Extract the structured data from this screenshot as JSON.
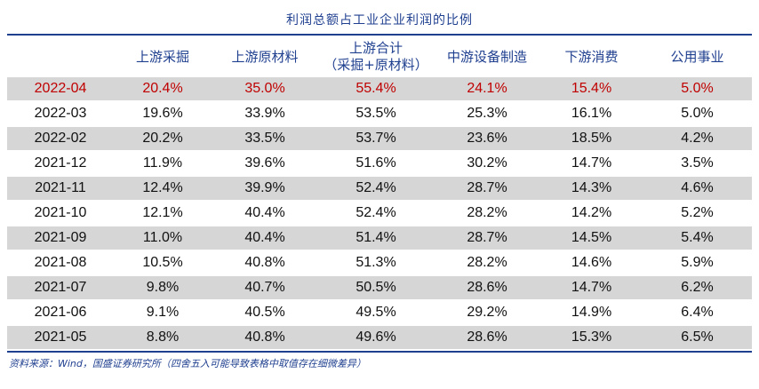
{
  "chart_data": {
    "type": "table",
    "title": "利润总额占工业企业利润的比例",
    "columns": [
      "",
      "上游采掘",
      "上游原材料",
      "上游合计\n（采掘+原材料）",
      "中游设备制造",
      "下游消费",
      "公用事业"
    ],
    "rows": [
      [
        "2022-04",
        "20.4%",
        "35.0%",
        "55.4%",
        "24.1%",
        "15.4%",
        "5.0%"
      ],
      [
        "2022-03",
        "19.6%",
        "33.9%",
        "53.5%",
        "25.3%",
        "16.1%",
        "5.0%"
      ],
      [
        "2022-02",
        "20.2%",
        "33.5%",
        "53.7%",
        "23.6%",
        "18.5%",
        "4.2%"
      ],
      [
        "2021-12",
        "11.9%",
        "39.6%",
        "51.6%",
        "30.2%",
        "14.7%",
        "3.5%"
      ],
      [
        "2021-11",
        "12.4%",
        "39.9%",
        "52.4%",
        "28.7%",
        "14.3%",
        "4.6%"
      ],
      [
        "2021-10",
        "12.1%",
        "40.4%",
        "52.4%",
        "28.2%",
        "14.2%",
        "5.2%"
      ],
      [
        "2021-09",
        "11.0%",
        "40.4%",
        "51.4%",
        "28.7%",
        "14.5%",
        "5.4%"
      ],
      [
        "2021-08",
        "10.5%",
        "40.8%",
        "51.3%",
        "28.2%",
        "14.6%",
        "5.9%"
      ],
      [
        "2021-07",
        "9.8%",
        "40.7%",
        "50.5%",
        "28.6%",
        "14.7%",
        "6.2%"
      ],
      [
        "2021-06",
        "9.1%",
        "40.5%",
        "49.5%",
        "29.2%",
        "14.9%",
        "6.4%"
      ],
      [
        "2021-05",
        "8.8%",
        "40.8%",
        "49.6%",
        "28.6%",
        "15.3%",
        "6.5%"
      ]
    ],
    "highlight_row": 0,
    "source": "资料来源：Wind，国盛证券研究所（四舍五入可能导致表格中取值存在细微差异）"
  },
  "colors": {
    "header_text": "#1f3f8f",
    "highlight_text": "#c00000",
    "shaded_row": "#d6d6d6"
  }
}
